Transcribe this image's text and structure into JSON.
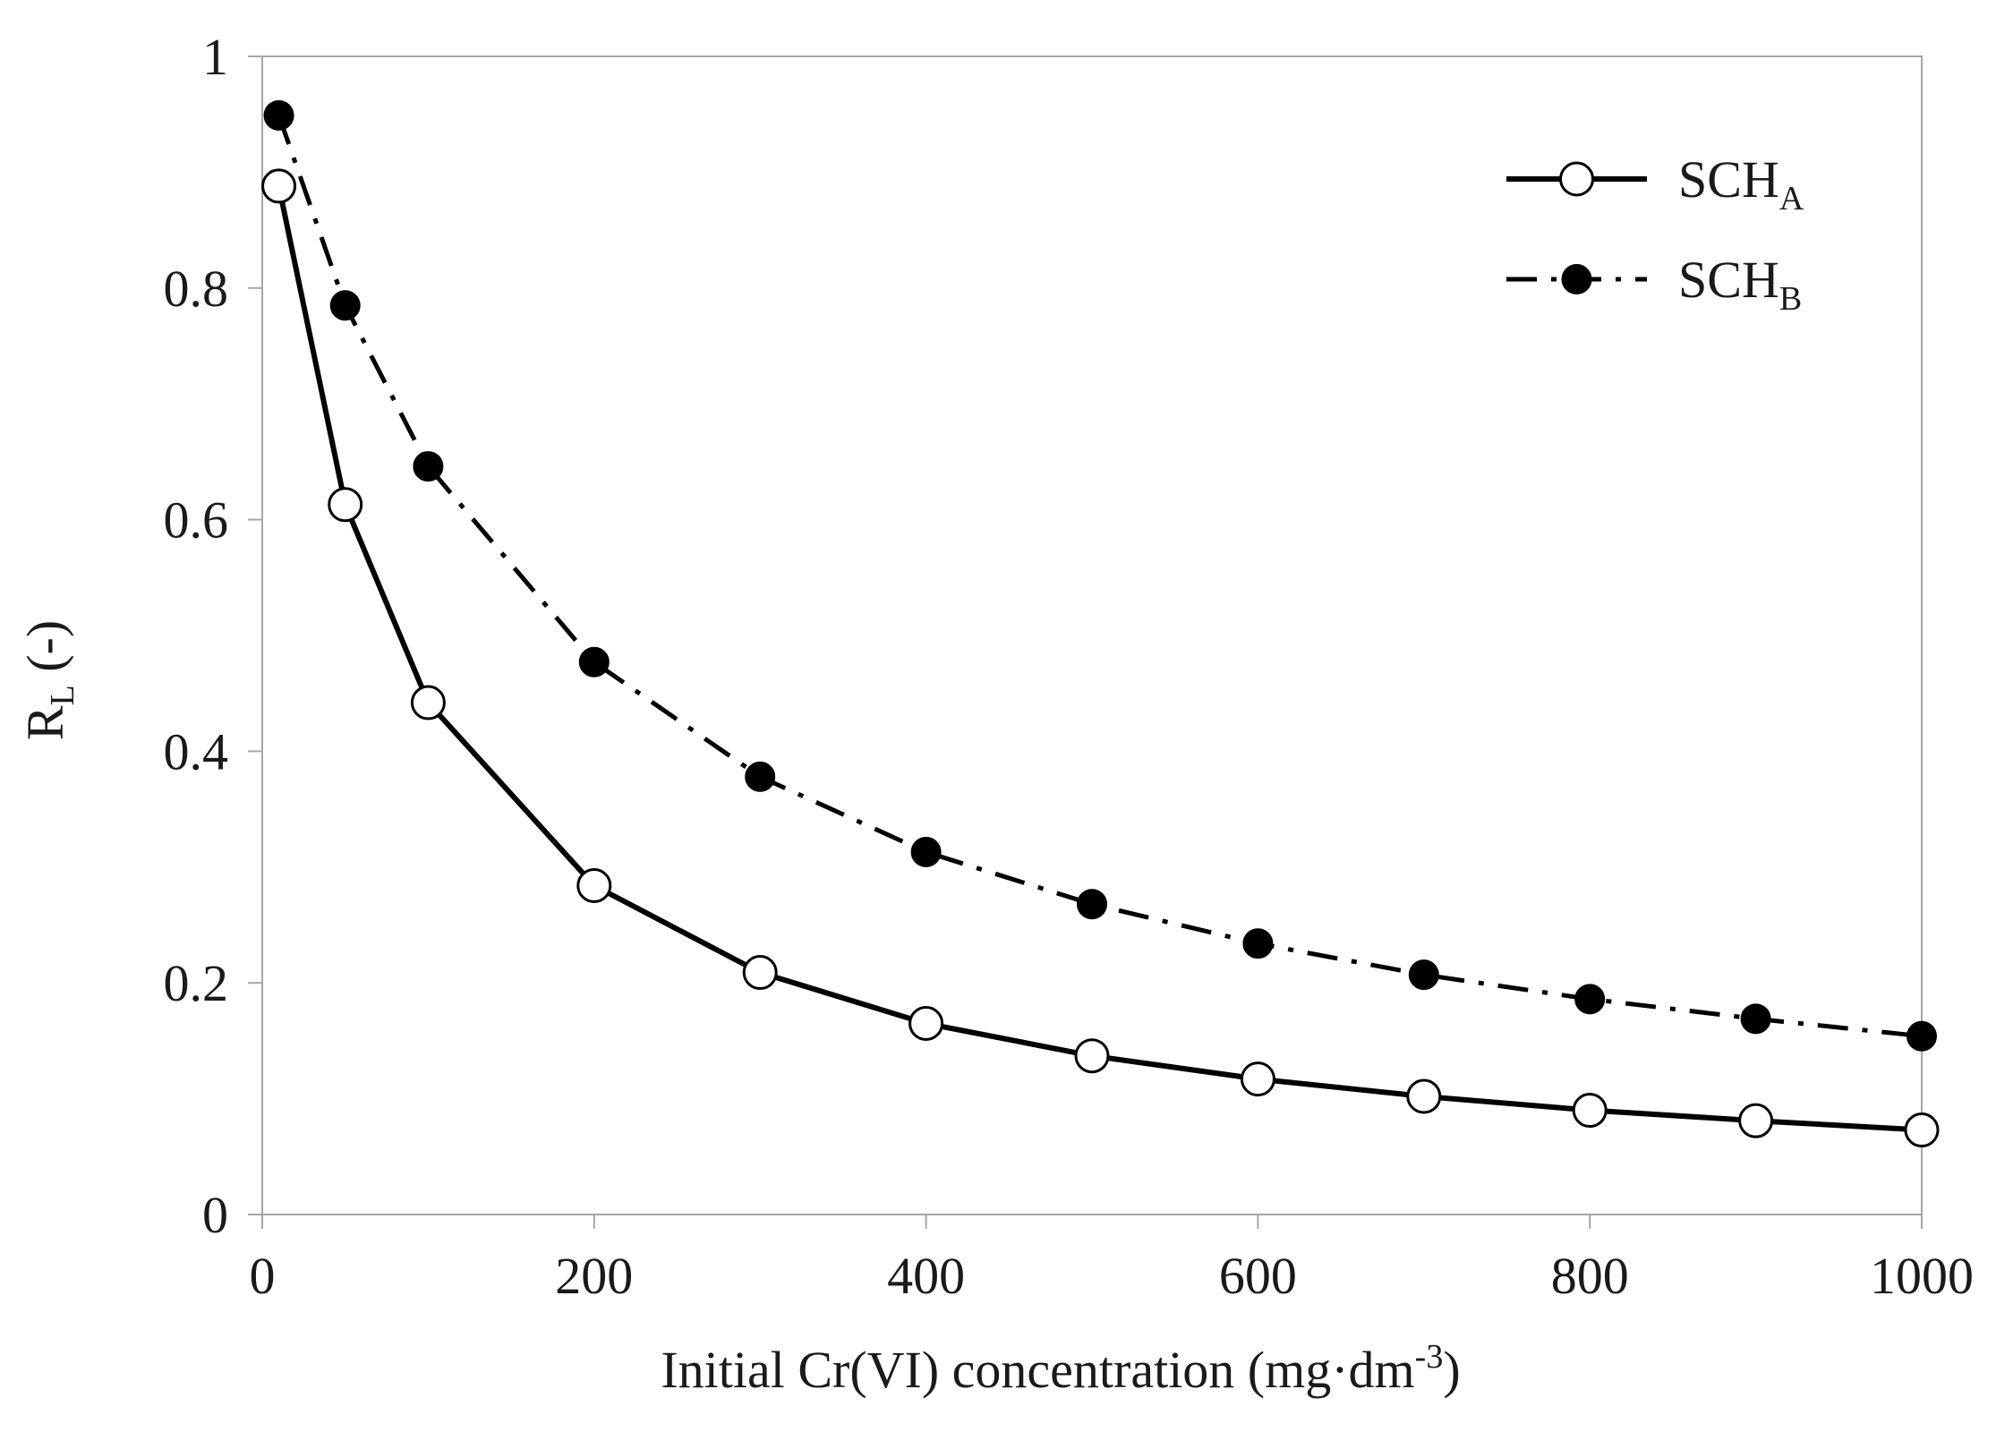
{
  "chart_data": {
    "type": "line",
    "title": "",
    "xlabel": {
      "text": "Initial Cr(VI) concentration (mg·dm",
      "sup": "-3",
      "close": ")"
    },
    "ylabel": {
      "main": "R",
      "sub": "L",
      "rest": " (-)"
    },
    "xlim": [
      0,
      1000
    ],
    "ylim": [
      0,
      1
    ],
    "xticks": [
      0,
      200,
      400,
      600,
      800,
      1000
    ],
    "xtick_labels": [
      "0",
      "200",
      "400",
      "600",
      "800",
      "1000"
    ],
    "yticks": [
      0,
      0.2,
      0.4,
      0.6,
      0.8,
      1
    ],
    "ytick_labels": [
      "0",
      "0.2",
      "0.4",
      "0.6",
      "0.8",
      "1"
    ],
    "grid": false,
    "legend_position": "top-right",
    "x": [
      10,
      50,
      100,
      200,
      300,
      400,
      500,
      600,
      700,
      800,
      900,
      1000
    ],
    "series": [
      {
        "name": "SCH",
        "subscript": "A",
        "marker": "open-circle",
        "line": "solid",
        "color": "#000000",
        "values": [
          0.888,
          0.613,
          0.442,
          0.284,
          0.209,
          0.165,
          0.137,
          0.117,
          0.102,
          0.09,
          0.081,
          0.073
        ]
      },
      {
        "name": "SCH",
        "subscript": "B",
        "marker": "filled-circle",
        "line": "dash-dot",
        "color": "#000000",
        "values": [
          0.949,
          0.785,
          0.646,
          0.477,
          0.378,
          0.313,
          0.268,
          0.234,
          0.207,
          0.186,
          0.169,
          0.154
        ]
      }
    ]
  }
}
